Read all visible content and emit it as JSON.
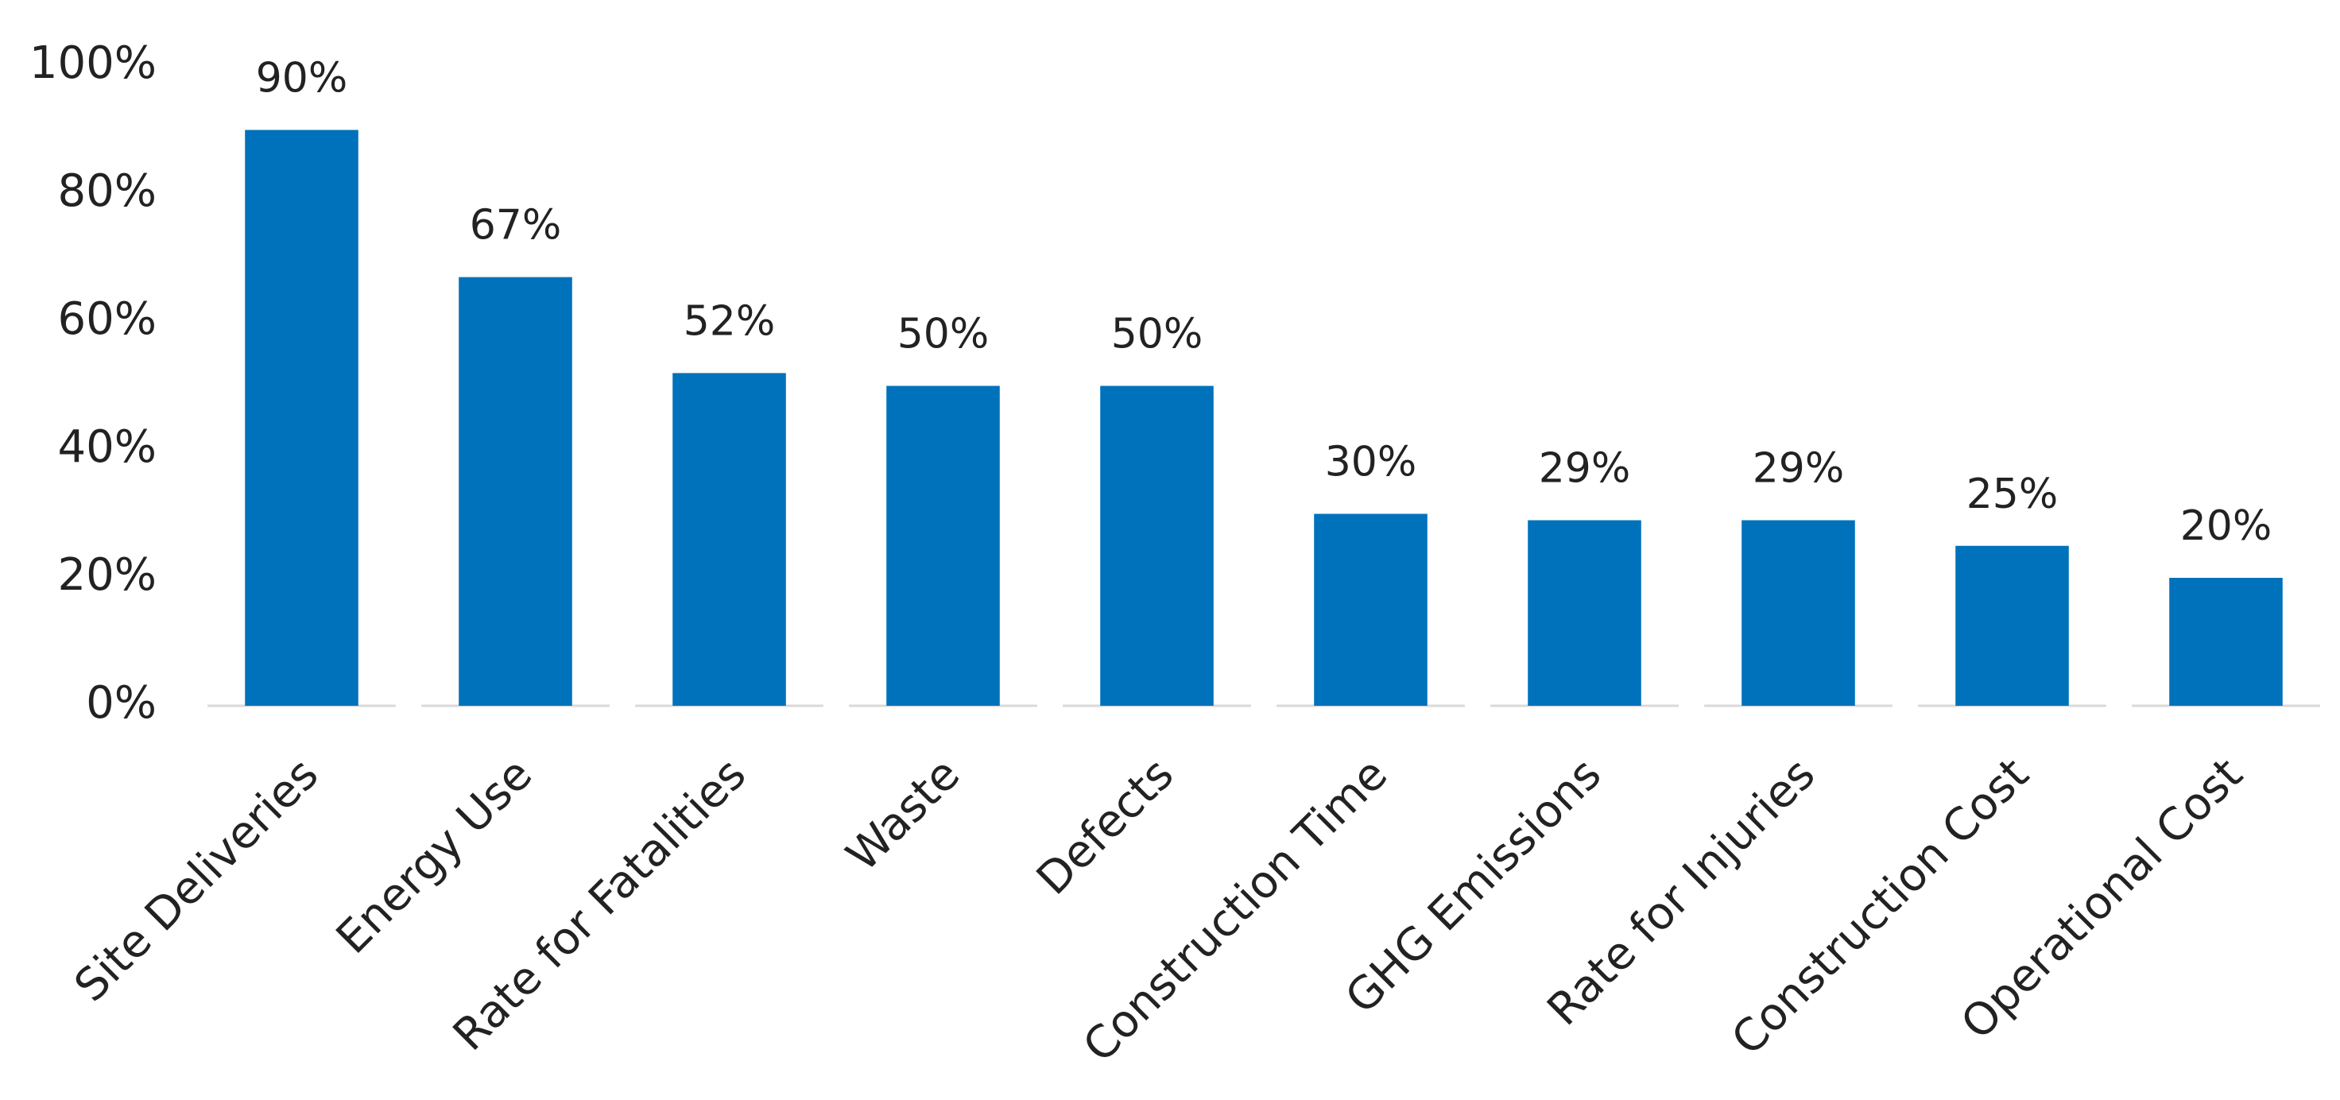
{
  "chart_data": {
    "type": "bar",
    "categories": [
      "Site Deliveries",
      "Energy Use",
      "Rate  for Fatalities",
      "Waste",
      "Defects",
      "Construction Time",
      "GHG Emissions",
      "Rate for Injuries",
      "Construction Cost",
      "Operational Cost"
    ],
    "values": [
      90,
      67,
      52,
      50,
      50,
      30,
      29,
      29,
      25,
      20
    ],
    "value_labels": [
      "90%",
      "67%",
      "52%",
      "50%",
      "50%",
      "30%",
      "29%",
      "29%",
      "25%",
      "20%"
    ],
    "color": "#0072bb",
    "ylim": [
      0,
      100
    ],
    "yticks": [
      {
        "value": 0,
        "label": "0%"
      },
      {
        "value": 20,
        "label": "20%"
      },
      {
        "value": 40,
        "label": "40%"
      },
      {
        "value": 60,
        "label": "60%"
      },
      {
        "value": 80,
        "label": "80%"
      },
      {
        "value": 100,
        "label": "100%"
      }
    ],
    "grid": false
  }
}
